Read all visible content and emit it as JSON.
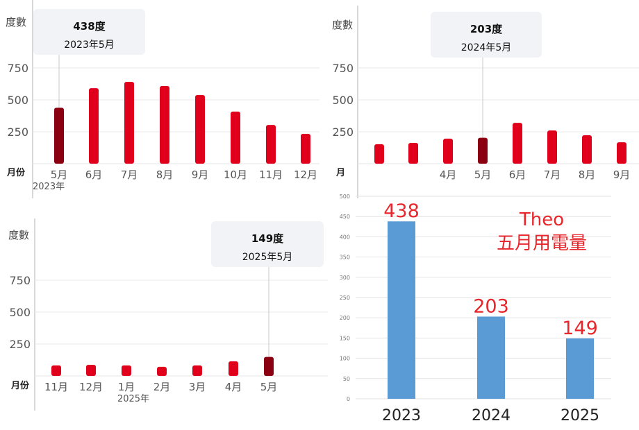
{
  "colors": {
    "bar": "#e0001b",
    "highlight": "#8a0010",
    "summary_bar": "#5b9bd5",
    "summary_label": "#e8262b",
    "grid": "#e8e8e8",
    "axis_text": "#555555"
  },
  "chart_data": [
    {
      "type": "bar",
      "ylabel": "度數",
      "xlabel": "月份",
      "yticks": [
        250,
        500,
        750
      ],
      "categories": [
        "5月",
        "6月",
        "7月",
        "8月",
        "9月",
        "10月",
        "11月",
        "12月"
      ],
      "sublabel": "2023年",
      "values": [
        438,
        592,
        641,
        609,
        538,
        408,
        304,
        234
      ],
      "highlight_index": 0,
      "tooltip": {
        "value": "438度",
        "date": "2023年5月"
      }
    },
    {
      "type": "bar",
      "ylabel": "度數",
      "xlabel": "月",
      "yticks": [
        250,
        500,
        750
      ],
      "categories": [
        "",
        "",
        "4月",
        "5月",
        "6月",
        "7月",
        "8月",
        "9月"
      ],
      "values": [
        152,
        163,
        196,
        203,
        320,
        260,
        223,
        168
      ],
      "highlight_index": 3,
      "tooltip": {
        "value": "203度",
        "date": "2024年5月"
      }
    },
    {
      "type": "bar",
      "ylabel": "度數",
      "xlabel": "月份",
      "yticks": [
        250,
        500,
        750
      ],
      "categories": [
        "11月",
        "12月",
        "1月",
        "2月",
        "3月",
        "4月",
        "5月"
      ],
      "sublabel": "2025年",
      "values": [
        82,
        87,
        82,
        71,
        82,
        114,
        149
      ],
      "highlight_index": 6,
      "tooltip": {
        "value": "149度",
        "date": "2025年5月"
      }
    },
    {
      "type": "bar",
      "title": "Theo",
      "subtitle": "五月用電量",
      "ylim": [
        0,
        500
      ],
      "yticks": [
        0,
        50,
        100,
        150,
        200,
        250,
        300,
        350,
        400,
        450,
        500
      ],
      "categories": [
        "2023",
        "2024",
        "2025"
      ],
      "values": [
        438,
        203,
        149
      ],
      "data_labels": [
        "438",
        "203",
        "149"
      ]
    }
  ]
}
